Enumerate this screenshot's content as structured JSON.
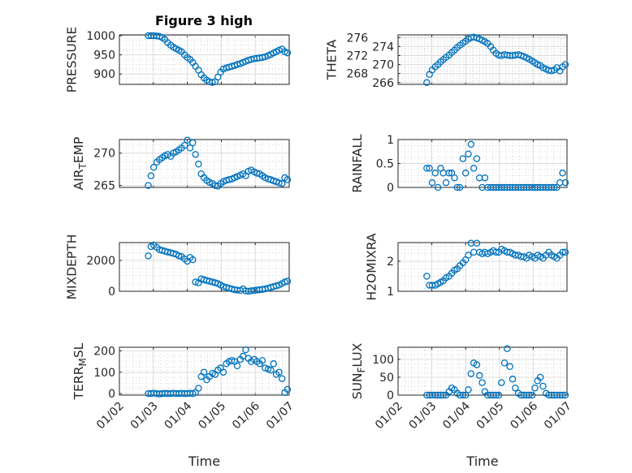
{
  "figure_title": "Figure 3 high",
  "marker_color": "#0072BD",
  "chart_data": [
    {
      "type": "scatter",
      "id": "pressure",
      "title": "Figure 3 high",
      "ylabel": "PRESSURE",
      "xlabel": "",
      "ylim": [
        873,
        1002
      ],
      "yticks": [
        900,
        950,
        1000
      ],
      "xlim": [
        2,
        7
      ],
      "x": [
        2.85,
        2.93,
        3.01,
        3.1,
        3.18,
        3.26,
        3.34,
        3.42,
        3.51,
        3.59,
        3.67,
        3.75,
        3.83,
        3.92,
        4.0,
        4.08,
        4.16,
        4.24,
        4.33,
        4.41,
        4.49,
        4.57,
        4.65,
        4.74,
        4.82,
        4.9,
        4.98,
        5.06,
        5.15,
        5.23,
        5.31,
        5.39,
        5.47,
        5.56,
        5.64,
        5.72,
        5.8,
        5.88,
        5.97,
        6.05,
        6.13,
        6.21,
        6.29,
        6.38,
        6.46,
        6.54,
        6.62,
        6.7,
        6.79,
        6.87,
        6.95
      ],
      "y": [
        1000,
        1000,
        1000,
        999,
        998,
        995,
        990,
        982,
        975,
        970,
        966,
        962,
        958,
        950,
        943,
        938,
        930,
        920,
        910,
        898,
        890,
        884,
        880,
        878,
        880,
        892,
        905,
        913,
        916,
        918,
        920,
        922,
        925,
        927,
        930,
        933,
        936,
        938,
        940,
        941,
        942,
        943,
        945,
        948,
        951,
        955,
        958,
        962,
        965,
        958,
        955
      ]
    },
    {
      "type": "scatter",
      "id": "theta",
      "title": "",
      "ylabel": "THETA",
      "xlabel": "",
      "ylim": [
        265.6,
        276.6
      ],
      "yticks": [
        266,
        268,
        270,
        272,
        274,
        276
      ],
      "xlim": [
        2,
        7
      ],
      "x": [
        2.85,
        2.93,
        3.01,
        3.1,
        3.18,
        3.26,
        3.34,
        3.42,
        3.51,
        3.59,
        3.67,
        3.75,
        3.83,
        3.92,
        4.0,
        4.08,
        4.16,
        4.24,
        4.33,
        4.41,
        4.49,
        4.57,
        4.65,
        4.74,
        4.82,
        4.9,
        4.98,
        5.06,
        5.15,
        5.23,
        5.31,
        5.39,
        5.47,
        5.56,
        5.64,
        5.72,
        5.8,
        5.88,
        5.97,
        6.05,
        6.13,
        6.21,
        6.29,
        6.38,
        6.46,
        6.54,
        6.62,
        6.7,
        6.79,
        6.87,
        6.95
      ],
      "y": [
        266,
        267.8,
        268.8,
        269.5,
        270,
        270.6,
        271.1,
        271.6,
        272.1,
        272.7,
        273.2,
        273.8,
        274.3,
        274.8,
        275.2,
        275.7,
        276,
        276.1,
        275.9,
        275.7,
        275.4,
        275.1,
        274.7,
        274,
        273.2,
        272.5,
        272.1,
        272,
        272.2,
        272.1,
        272,
        272,
        272.1,
        272.2,
        272,
        271.8,
        271.5,
        271.2,
        270.8,
        270.4,
        270,
        269.8,
        269.3,
        269,
        268.7,
        268.6,
        268.8,
        269.3,
        268.6,
        269.5,
        270
      ]
    },
    {
      "type": "scatter",
      "id": "air_temp",
      "title": "",
      "ylabel": "AIR_TEMP",
      "xlabel": "",
      "ylim": [
        264.7,
        272.1
      ],
      "yticks": [
        265,
        270
      ],
      "xlim": [
        2,
        7
      ],
      "x": [
        2.85,
        2.93,
        3.01,
        3.1,
        3.18,
        3.26,
        3.34,
        3.42,
        3.51,
        3.59,
        3.67,
        3.75,
        3.83,
        3.92,
        4.0,
        4.08,
        4.16,
        4.24,
        4.33,
        4.41,
        4.49,
        4.57,
        4.65,
        4.74,
        4.82,
        4.9,
        4.98,
        5.06,
        5.15,
        5.23,
        5.31,
        5.39,
        5.47,
        5.56,
        5.64,
        5.72,
        5.8,
        5.88,
        5.97,
        6.05,
        6.13,
        6.21,
        6.29,
        6.38,
        6.46,
        6.54,
        6.62,
        6.7,
        6.79,
        6.87,
        6.95
      ],
      "y": [
        265,
        266.5,
        267.8,
        268.6,
        269,
        269.3,
        269.6,
        269.8,
        269.5,
        270,
        270.2,
        270.5,
        270.8,
        271.2,
        272,
        270.8,
        271.6,
        269.8,
        268.3,
        266.8,
        266.2,
        265.8,
        265.5,
        265.3,
        265,
        264.9,
        265.3,
        265.6,
        265.8,
        265.9,
        266,
        266.2,
        266.4,
        266.6,
        266.8,
        266.5,
        267.2,
        267.4,
        267.1,
        266.9,
        266.8,
        266.5,
        266.2,
        266,
        265.9,
        265.7,
        265.6,
        265.4,
        265.3,
        266.2,
        265.9
      ]
    },
    {
      "type": "scatter",
      "id": "rainfall",
      "title": "",
      "ylabel": "RAINFALL",
      "xlabel": "",
      "ylim": [
        0,
        1
      ],
      "yticks": [
        0,
        0.5,
        1
      ],
      "xlim": [
        2,
        7
      ],
      "x": [
        2.85,
        2.93,
        3.01,
        3.1,
        3.18,
        3.26,
        3.34,
        3.42,
        3.51,
        3.59,
        3.67,
        3.75,
        3.83,
        3.92,
        4.0,
        4.08,
        4.16,
        4.24,
        4.33,
        4.41,
        4.49,
        4.57,
        4.65,
        4.74,
        4.82,
        4.9,
        4.98,
        5.06,
        5.15,
        5.23,
        5.31,
        5.39,
        5.47,
        5.56,
        5.64,
        5.72,
        5.8,
        5.88,
        5.97,
        6.05,
        6.13,
        6.21,
        6.29,
        6.38,
        6.46,
        6.54,
        6.62,
        6.7,
        6.79,
        6.87,
        6.95
      ],
      "y": [
        0.4,
        0.4,
        0.1,
        0.3,
        0,
        0.4,
        0.3,
        0.1,
        0.3,
        0.3,
        0.2,
        0,
        0,
        0.6,
        0.3,
        0.7,
        0.9,
        0.4,
        0.6,
        0.2,
        0,
        0.2,
        0,
        0,
        0,
        0,
        0,
        0,
        0,
        0,
        0,
        0,
        0,
        0,
        0,
        0,
        0,
        0,
        0,
        0,
        0,
        0,
        0,
        0,
        0,
        0,
        0,
        0,
        0.1,
        0.3,
        0.1
      ]
    },
    {
      "type": "scatter",
      "id": "mixdepth",
      "title": "",
      "ylabel": "MIXDEPTH",
      "xlabel": "",
      "ylim": [
        0,
        3160
      ],
      "yticks": [
        0,
        2000
      ],
      "xlim": [
        2,
        7
      ],
      "x": [
        2.85,
        2.93,
        3.01,
        3.1,
        3.18,
        3.26,
        3.34,
        3.42,
        3.51,
        3.59,
        3.67,
        3.75,
        3.83,
        3.92,
        4.0,
        4.08,
        4.16,
        4.24,
        4.33,
        4.41,
        4.49,
        4.57,
        4.65,
        4.74,
        4.82,
        4.9,
        4.98,
        5.06,
        5.15,
        5.23,
        5.31,
        5.39,
        5.47,
        5.56,
        5.64,
        5.72,
        5.8,
        5.88,
        5.97,
        6.05,
        6.13,
        6.21,
        6.29,
        6.38,
        6.46,
        6.54,
        6.62,
        6.7,
        6.79,
        6.87,
        6.95
      ],
      "y": [
        2300,
        2900,
        3000,
        2850,
        2700,
        2650,
        2600,
        2550,
        2500,
        2450,
        2400,
        2300,
        2250,
        2100,
        1950,
        2200,
        2050,
        600,
        550,
        800,
        750,
        700,
        650,
        600,
        550,
        500,
        400,
        300,
        250,
        200,
        150,
        100,
        80,
        50,
        150,
        20,
        0,
        30,
        50,
        80,
        100,
        120,
        150,
        200,
        250,
        300,
        350,
        400,
        500,
        600,
        650
      ]
    },
    {
      "type": "scatter",
      "id": "h2omixra",
      "title": "",
      "ylabel": "H2OMIXRA",
      "xlabel": "",
      "ylim": [
        1,
        2.62
      ],
      "yticks": [
        1,
        2
      ],
      "xlim": [
        2,
        7
      ],
      "x": [
        2.85,
        2.93,
        3.01,
        3.1,
        3.18,
        3.26,
        3.34,
        3.42,
        3.51,
        3.59,
        3.67,
        3.75,
        3.83,
        3.92,
        4.0,
        4.08,
        4.16,
        4.24,
        4.33,
        4.41,
        4.49,
        4.57,
        4.65,
        4.74,
        4.82,
        4.9,
        4.98,
        5.06,
        5.15,
        5.23,
        5.31,
        5.39,
        5.47,
        5.56,
        5.64,
        5.72,
        5.8,
        5.88,
        5.97,
        6.05,
        6.13,
        6.21,
        6.29,
        6.38,
        6.46,
        6.54,
        6.62,
        6.7,
        6.79,
        6.87,
        6.95
      ],
      "y": [
        1.5,
        1.2,
        1.2,
        1.2,
        1.25,
        1.3,
        1.35,
        1.45,
        1.5,
        1.6,
        1.7,
        1.75,
        1.85,
        1.95,
        2.05,
        2.2,
        2.6,
        2.3,
        2.6,
        2.3,
        2.25,
        2.3,
        2.25,
        2.3,
        2.35,
        2.3,
        2.3,
        2.4,
        2.35,
        2.3,
        2.3,
        2.25,
        2.2,
        2.2,
        2.15,
        2.15,
        2.1,
        2.2,
        2.15,
        2.1,
        2.2,
        2.15,
        2.1,
        2.2,
        2.3,
        2.2,
        2.15,
        2.1,
        2.2,
        2.3,
        2.3
      ]
    },
    {
      "type": "scatter",
      "id": "terr_msl",
      "title": "",
      "ylabel": "TERR_MSL",
      "xlabel": "Time",
      "ylim": [
        -7,
        217
      ],
      "yticks": [
        0,
        100,
        200
      ],
      "xlim": [
        2,
        7
      ],
      "x": [
        2.85,
        2.93,
        3.01,
        3.1,
        3.18,
        3.26,
        3.34,
        3.42,
        3.51,
        3.59,
        3.67,
        3.75,
        3.83,
        3.92,
        4.0,
        4.08,
        4.16,
        4.24,
        4.33,
        4.41,
        4.49,
        4.57,
        4.65,
        4.74,
        4.82,
        4.9,
        4.98,
        5.06,
        5.15,
        5.23,
        5.31,
        5.39,
        5.47,
        5.56,
        5.64,
        5.72,
        5.8,
        5.88,
        5.97,
        6.05,
        6.13,
        6.21,
        6.29,
        6.38,
        6.46,
        6.54,
        6.62,
        6.7,
        6.79,
        6.87,
        6.95
      ],
      "y": [
        0,
        0,
        2,
        0,
        -2,
        0,
        1,
        0,
        0,
        2,
        0,
        0,
        1,
        0,
        0,
        2,
        0,
        5,
        25,
        80,
        100,
        65,
        80,
        95,
        90,
        110,
        120,
        100,
        140,
        150,
        155,
        150,
        130,
        160,
        175,
        205,
        165,
        150,
        160,
        150,
        140,
        155,
        120,
        115,
        110,
        140,
        90,
        100,
        70,
        5,
        20
      ]
    },
    {
      "type": "scatter",
      "id": "sun_flux",
      "title": "",
      "ylabel": "SUN_FLUX",
      "xlabel": "Time",
      "ylim": [
        0,
        134
      ],
      "yticks": [
        0,
        50,
        100
      ],
      "xlim": [
        2,
        7
      ],
      "x": [
        2.85,
        2.93,
        3.01,
        3.1,
        3.18,
        3.26,
        3.34,
        3.42,
        3.51,
        3.59,
        3.67,
        3.75,
        3.83,
        3.92,
        4.0,
        4.08,
        4.16,
        4.24,
        4.33,
        4.41,
        4.49,
        4.57,
        4.65,
        4.74,
        4.82,
        4.9,
        4.98,
        5.06,
        5.15,
        5.23,
        5.31,
        5.39,
        5.47,
        5.56,
        5.64,
        5.72,
        5.8,
        5.88,
        5.97,
        6.05,
        6.13,
        6.21,
        6.29,
        6.38,
        6.46,
        6.54,
        6.62,
        6.7,
        6.79,
        6.87,
        6.95
      ],
      "y": [
        0,
        0,
        0,
        0,
        0,
        0,
        0,
        0,
        10,
        20,
        15,
        5,
        0,
        0,
        0,
        15,
        60,
        90,
        85,
        55,
        35,
        10,
        0,
        0,
        0,
        0,
        0,
        35,
        90,
        130,
        80,
        45,
        20,
        5,
        0,
        0,
        0,
        0,
        0,
        20,
        40,
        50,
        25,
        5,
        0,
        0,
        0,
        0,
        0,
        0,
        0
      ]
    }
  ],
  "xticks": [
    2,
    3,
    4,
    5,
    6,
    7
  ],
  "xtick_labels": [
    "01/02",
    "01/03",
    "01/04",
    "01/05",
    "01/06",
    "01/07"
  ]
}
